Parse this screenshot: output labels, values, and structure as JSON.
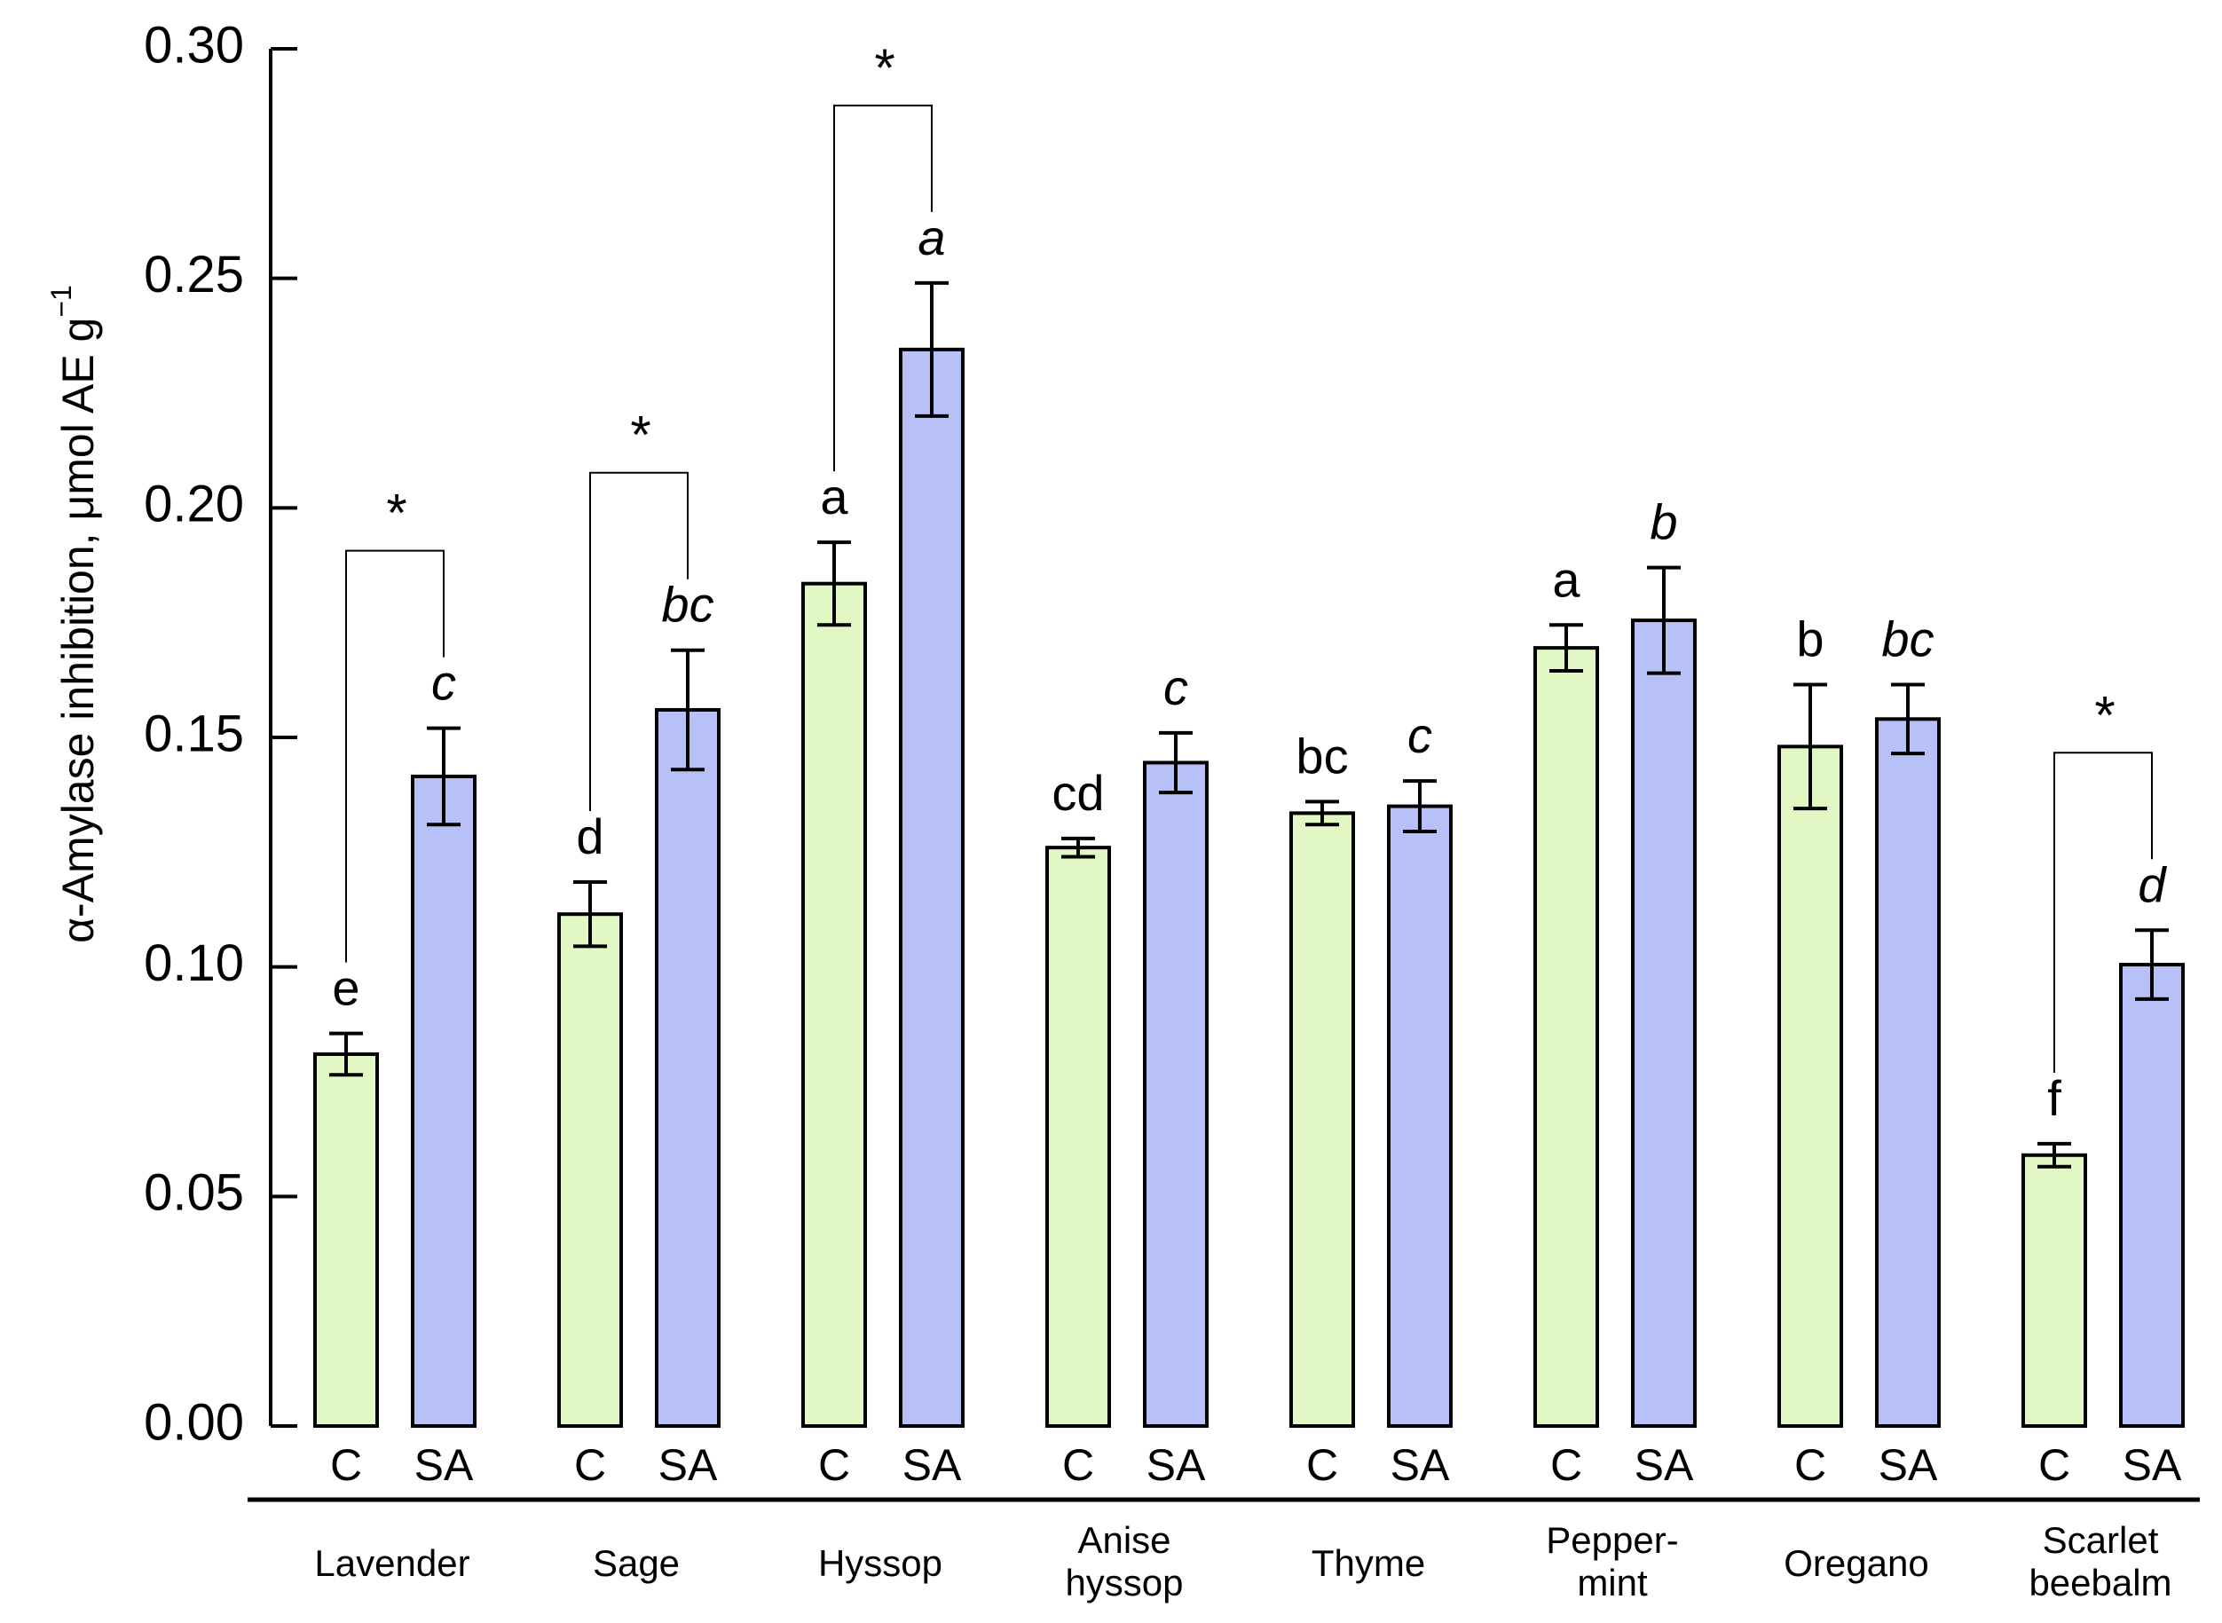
{
  "chart_data": {
    "type": "bar",
    "ylabel": "α-Amylase inhibition, μmol AE g",
    "ylabel_superscript": "−1",
    "ylim": [
      0,
      0.3
    ],
    "yticks": [
      "0.00",
      "0.05",
      "0.10",
      "0.15",
      "0.20",
      "0.25",
      "0.30"
    ],
    "grid": false,
    "colors": {
      "C": "#e2f8c4",
      "SA": "#b8c0f8"
    },
    "treatment_labels": [
      "C",
      "SA"
    ],
    "groups": [
      {
        "name": [
          "Lavender"
        ],
        "C": {
          "value": 0.081,
          "err": 0.0045,
          "letter": "e"
        },
        "SA": {
          "value": 0.1415,
          "err": 0.0105,
          "letter": "c"
        },
        "star": "*"
      },
      {
        "name": [
          "Sage"
        ],
        "C": {
          "value": 0.1115,
          "err": 0.007,
          "letter": "d"
        },
        "SA": {
          "value": 0.156,
          "err": 0.013,
          "letter": "bc"
        },
        "star": "*"
      },
      {
        "name": [
          "Hyssop"
        ],
        "C": {
          "value": 0.1835,
          "err": 0.009,
          "letter": "a"
        },
        "SA": {
          "value": 0.2345,
          "err": 0.0145,
          "letter": "a"
        },
        "star": "*"
      },
      {
        "name": [
          "Anise",
          "hyssop"
        ],
        "C": {
          "value": 0.126,
          "err": 0.002,
          "letter": "cd"
        },
        "SA": {
          "value": 0.1445,
          "err": 0.0065,
          "letter": "c"
        },
        "star": ""
      },
      {
        "name": [
          "Thyme"
        ],
        "C": {
          "value": 0.1335,
          "err": 0.0025,
          "letter": "bc"
        },
        "SA": {
          "value": 0.135,
          "err": 0.0055,
          "letter": "c"
        },
        "star": ""
      },
      {
        "name": [
          "Pepper-",
          "mint"
        ],
        "C": {
          "value": 0.1695,
          "err": 0.005,
          "letter": "a"
        },
        "SA": {
          "value": 0.1755,
          "err": 0.0115,
          "letter": "b"
        },
        "star": ""
      },
      {
        "name": [
          "Oregano"
        ],
        "C": {
          "value": 0.148,
          "err": 0.0135,
          "letter": "b"
        },
        "SA": {
          "value": 0.154,
          "err": 0.0075,
          "letter": "bc"
        },
        "star": ""
      },
      {
        "name": [
          "Scarlet",
          "beebalm"
        ],
        "C": {
          "value": 0.059,
          "err": 0.0025,
          "letter": "f"
        },
        "SA": {
          "value": 0.1005,
          "err": 0.0075,
          "letter": "d"
        },
        "star": "*"
      }
    ]
  }
}
